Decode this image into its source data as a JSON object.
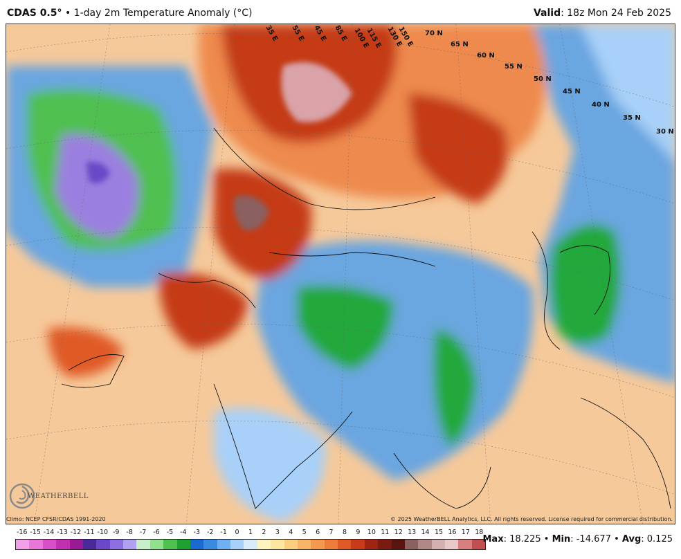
{
  "header": {
    "brand": "CDAS 0.5",
    "degree": "°",
    "bullet": "•",
    "title": "1-day 2m Temperature Anomaly (°C)",
    "valid_label": "Valid",
    "valid_value": ": 18z Mon 24 Feb 2025"
  },
  "map": {
    "lat_labels": [
      "70 N",
      "65 N",
      "60 N",
      "55 N",
      "50 N",
      "45 N",
      "40 N",
      "35 N",
      "30 N"
    ],
    "lon_labels": [
      "35 E",
      "55 E",
      "45 E",
      "85 E",
      "100 E",
      "115 E",
      "130 E",
      "150 E"
    ],
    "colors": {
      "warm_light": "#f6c99a",
      "warm_mid": "#ee8a4e",
      "warm_deep": "#c43a12",
      "warm_extreme": "#7a1a10",
      "hot_pink": "#d9a3a8",
      "cool_light": "#cfe2f3",
      "cool_mid": "#6aa6e0",
      "cool_deep": "#2f6fcc",
      "green": "#22a83a",
      "purple": "#9b7fe0",
      "sea_blue": "#4d8fe0"
    }
  },
  "footer": {
    "climo": "Climo: NCEP CFSR/CDAS 1991-2020",
    "copyright": "© 2025 WeatherBELL Analytics, LLC. All rights reserved. License required for commercial distribution.",
    "logo_text": "WEATHERBELL"
  },
  "legend": {
    "ticks": [
      "-16",
      "-15",
      "-14",
      "-13",
      "-12",
      "-11",
      "-10",
      "-9",
      "-8",
      "-7",
      "-6",
      "-5",
      "-4",
      "-3",
      "-2",
      "-1",
      "0",
      "1",
      "2",
      "3",
      "4",
      "5",
      "6",
      "7",
      "8",
      "9",
      "10",
      "11",
      "12",
      "13",
      "14",
      "15",
      "16",
      "17",
      "18"
    ],
    "colors": [
      "#f2a0e8",
      "#e878d8",
      "#d850c8",
      "#c030b0",
      "#9a1a96",
      "#4a2a9a",
      "#6a48c8",
      "#8c70e0",
      "#b0a0f0",
      "#c8f0c8",
      "#90e090",
      "#50c050",
      "#20a030",
      "#1a6ad0",
      "#3a8ae0",
      "#70b0f0",
      "#a8d0f8",
      "#d8ecfc",
      "#fff4c0",
      "#fde6a0",
      "#fbcf80",
      "#f8b468",
      "#f49850",
      "#ee7a3c",
      "#e05a28",
      "#c83a1a",
      "#a02414",
      "#7a1a10",
      "#5a1410",
      "#8a6060",
      "#b08888",
      "#d4b0b0",
      "#e8c8c8",
      "#d88080",
      "#c05050"
    ]
  },
  "stats": {
    "max_label": "Max",
    "max_value": ": 18.225",
    "min_label": "Min",
    "min_value": ": -14.677",
    "avg_label": "Avg",
    "avg_value": ": 0.125",
    "sep": "•"
  }
}
